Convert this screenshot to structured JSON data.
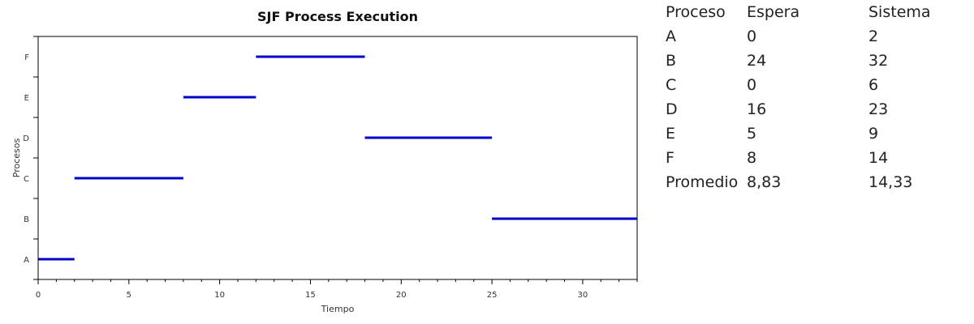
{
  "chart_data": {
    "type": "gantt",
    "title": "SJF Process Execution",
    "xlabel": "Tiempo",
    "ylabel": "Procesos",
    "xlim": [
      0,
      33
    ],
    "xticks": [
      0,
      5,
      10,
      15,
      20,
      25,
      30
    ],
    "categories": [
      "A",
      "B",
      "C",
      "D",
      "E",
      "F"
    ],
    "color": "#0000cc",
    "grid": false,
    "segments": [
      {
        "process": "A",
        "start": 0,
        "end": 2
      },
      {
        "process": "C",
        "start": 2,
        "end": 8
      },
      {
        "process": "E",
        "start": 8,
        "end": 12
      },
      {
        "process": "F",
        "start": 12,
        "end": 18
      },
      {
        "process": "D",
        "start": 18,
        "end": 25
      },
      {
        "process": "B",
        "start": 25,
        "end": 33
      }
    ]
  },
  "table": {
    "headers": [
      "Proceso",
      "Espera",
      "Sistema"
    ],
    "rows": [
      [
        "A",
        "0",
        "2"
      ],
      [
        "B",
        "24",
        "32"
      ],
      [
        "C",
        "0",
        "6"
      ],
      [
        "D",
        "16",
        "23"
      ],
      [
        "E",
        "5",
        "9"
      ],
      [
        "F",
        "8",
        "14"
      ],
      [
        "Promedio",
        "8,83",
        "14,33"
      ]
    ]
  }
}
